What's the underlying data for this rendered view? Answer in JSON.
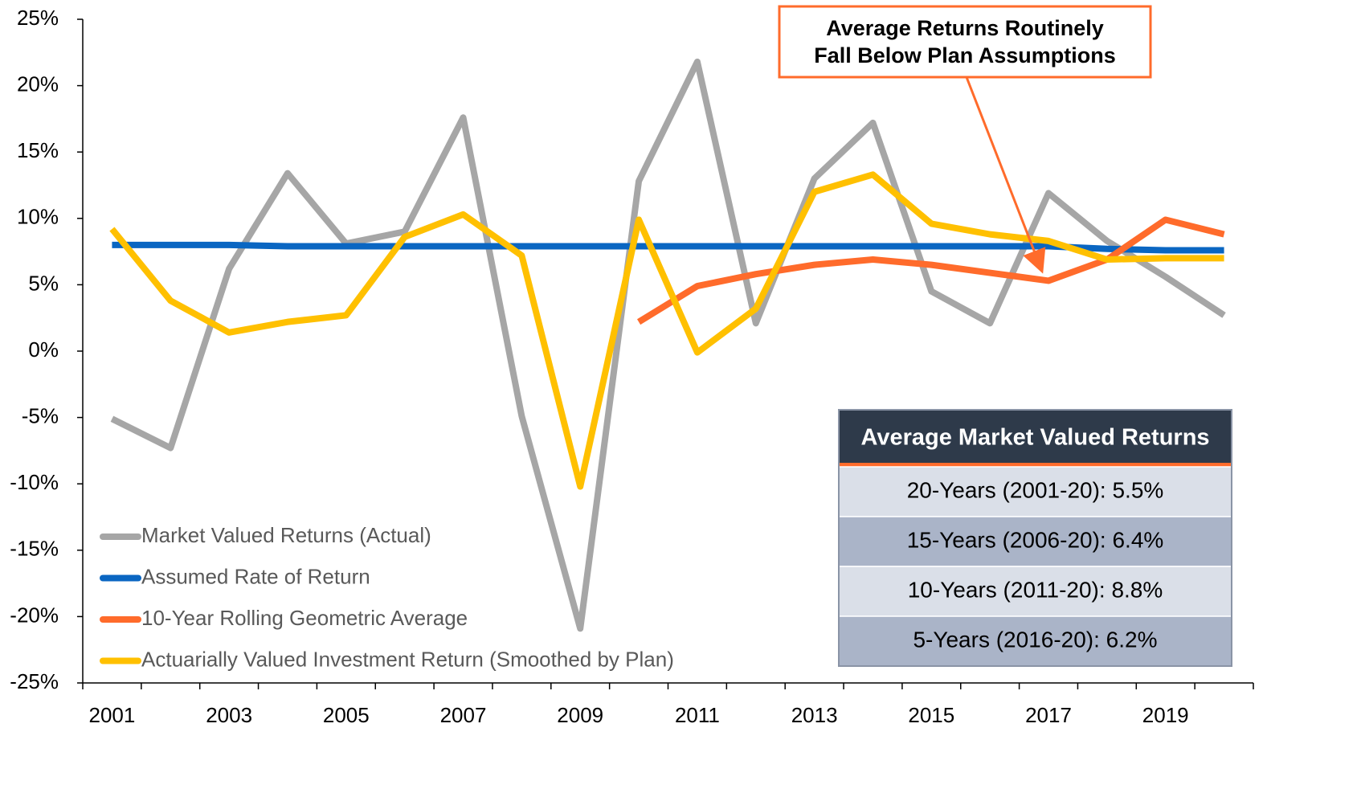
{
  "chart_data": {
    "type": "line",
    "categories": [
      "2001",
      null,
      "2003",
      null,
      "2005",
      null,
      "2007",
      null,
      "2009",
      null,
      "2011",
      null,
      "2013",
      null,
      "2015",
      null,
      "2017",
      null,
      "2019",
      null
    ],
    "series": [
      {
        "name": "Market Valued Returns (Actual)",
        "color": "#a6a6a6",
        "values": [
          -5.1,
          -7.3,
          6.2,
          13.4,
          8.1,
          9.0,
          17.6,
          -4.9,
          -20.9,
          12.8,
          21.8,
          2.1,
          13.0,
          17.2,
          4.5,
          2.1,
          11.9,
          8.3,
          5.6,
          2.7
        ]
      },
      {
        "name": "Assumed Rate of Return",
        "color": "#0a66c2",
        "values": [
          8.0,
          8.0,
          8.0,
          7.9,
          7.9,
          7.9,
          7.9,
          7.9,
          7.9,
          7.9,
          7.9,
          7.9,
          7.9,
          7.9,
          7.9,
          7.9,
          7.9,
          7.7,
          7.6,
          7.6
        ]
      },
      {
        "name": "10-Year Rolling Geometric Average",
        "color": "#ff6b2b",
        "values": [
          null,
          null,
          null,
          null,
          null,
          null,
          null,
          null,
          null,
          2.2,
          4.9,
          5.8,
          6.5,
          6.9,
          6.5,
          5.9,
          5.3,
          6.9,
          9.9,
          8.8
        ]
      },
      {
        "name": "Actuarially Valued Investment Return (Smoothed by Plan)",
        "color": "#ffc000",
        "values": [
          9.2,
          3.8,
          1.4,
          2.2,
          2.7,
          8.6,
          10.3,
          7.2,
          -10.2,
          9.9,
          -0.1,
          3.2,
          12.0,
          13.3,
          9.6,
          8.8,
          8.3,
          6.9,
          7.0,
          7.0
        ]
      }
    ],
    "ylim": [
      -25,
      25
    ],
    "yticks": [
      {
        "value": -25,
        "label": "-25%"
      },
      {
        "value": -20,
        "label": "-20%"
      },
      {
        "value": -15,
        "label": "-15%"
      },
      {
        "value": -10,
        "label": "-10%"
      },
      {
        "value": -5,
        "label": "-5%"
      },
      {
        "value": 0,
        "label": "0%"
      },
      {
        "value": 5,
        "label": "5%"
      },
      {
        "value": 10,
        "label": "10%"
      },
      {
        "value": 15,
        "label": "15%"
      },
      {
        "value": 20,
        "label": "20%"
      },
      {
        "value": 25,
        "label": "25%"
      }
    ],
    "grid": false,
    "legend": "bottom-left",
    "annotation": [
      "Average Returns Routinely",
      "Fall Below Plan Assumptions"
    ],
    "table": {
      "title": "Average Market Valued Returns",
      "rows": [
        "20-Years (2001-20): 5.5%",
        "15-Years (2006-20): 6.4%",
        "10-Years (2011-20): 8.8%",
        "5-Years (2016-20): 6.2%"
      ]
    }
  }
}
